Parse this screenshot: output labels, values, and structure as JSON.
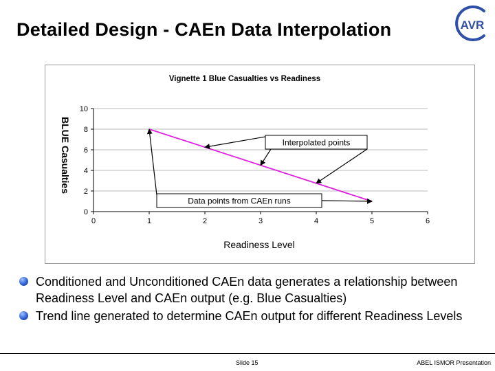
{
  "slide": {
    "title": "Detailed Design - CAEn Data Interpolation",
    "logo_text": "AVR",
    "bullets": [
      "Conditioned and Unconditioned CAEn data generates a relationship between Readiness Level and CAEn output (e.g. Blue Casualties)",
      "Trend line generated to determine CAEn output for different Readiness Levels"
    ],
    "footer": {
      "slide_number": "Slide 15",
      "presentation": "ABEL ISMOR Presentation"
    },
    "colors": {
      "trend_line": "#e020e0",
      "bullet": "#2f62d8",
      "logo": "#2f4fa8"
    }
  },
  "chart_data": {
    "type": "line",
    "title": "Vignette 1 Blue Casualties vs Readiness",
    "xlabel": "Readiness Level",
    "ylabel": "BLUE Casualties",
    "xlim": [
      0,
      6
    ],
    "ylim": [
      0,
      10
    ],
    "x_ticks": [
      0,
      1,
      2,
      3,
      4,
      5,
      6
    ],
    "y_ticks": [
      0,
      2,
      4,
      6,
      8,
      10
    ],
    "grid": "horizontal",
    "series": [
      {
        "x": [
          1,
          5
        ],
        "y": [
          8,
          1
        ]
      }
    ],
    "annotations": {
      "data_points_label": "Data points from CAEn runs",
      "data_points": [
        [
          1,
          8
        ],
        [
          5,
          1
        ]
      ],
      "interpolated_label": "Interpolated points",
      "interpolated_points": [
        [
          2,
          6.25
        ],
        [
          3,
          4.5
        ],
        [
          4,
          2.75
        ]
      ]
    }
  }
}
